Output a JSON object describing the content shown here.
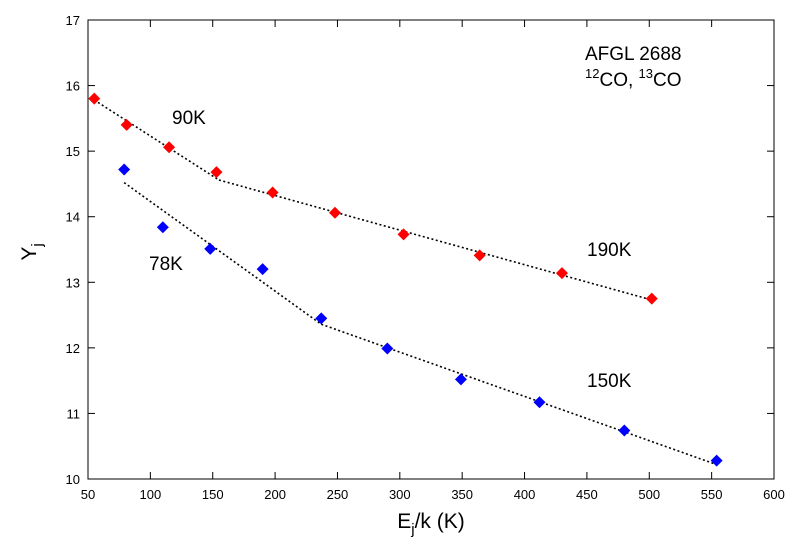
{
  "chart_data": {
    "type": "scatter",
    "title": "",
    "xlabel": "E_j/k (K)",
    "ylabel": "Y_j",
    "xlabel_parts": {
      "main": "E",
      "sub": "j",
      "rest": "/k (K)"
    },
    "ylabel_parts": {
      "main": "Y",
      "sub": "j"
    },
    "xlim": [
      50,
      600
    ],
    "ylim": [
      10,
      17
    ],
    "xticks": [
      50,
      100,
      150,
      200,
      250,
      300,
      350,
      400,
      450,
      500,
      550,
      600
    ],
    "yticks": [
      10,
      11,
      12,
      13,
      14,
      15,
      16,
      17
    ],
    "grid": false,
    "series": [
      {
        "name": "12CO",
        "color": "#ff0000",
        "marker": "diamond",
        "x": [
          55,
          81,
          115,
          153,
          198,
          248,
          303,
          364,
          430,
          502
        ],
        "y": [
          15.8,
          15.4,
          15.06,
          14.68,
          14.37,
          14.06,
          13.73,
          13.41,
          13.14,
          12.75
        ]
      },
      {
        "name": "13CO",
        "color": "#0000ff",
        "marker": "diamond",
        "x": [
          79,
          110,
          148,
          190,
          237,
          290,
          349,
          412,
          480,
          554
        ],
        "y": [
          14.72,
          13.84,
          13.51,
          13.2,
          12.45,
          11.99,
          11.52,
          11.17,
          10.74,
          10.28
        ]
      }
    ],
    "fit_lines": [
      {
        "name": "90K",
        "x": [
          55,
          155
        ],
        "y": [
          15.78,
          14.56
        ]
      },
      {
        "name": "190K",
        "x": [
          155,
          502
        ],
        "y": [
          14.56,
          12.73
        ]
      },
      {
        "name": "78K",
        "x": [
          79,
          237
        ],
        "y": [
          14.52,
          12.36
        ]
      },
      {
        "name": "150K",
        "x": [
          237,
          554
        ],
        "y": [
          12.36,
          10.22
        ]
      }
    ],
    "annotations": {
      "object_name": "AFGL 2688",
      "species": {
        "sup1": "12",
        "mol1": "CO, ",
        "sup2": "13",
        "mol2": "CO"
      },
      "temperatures": [
        "90K",
        "78K",
        "190K",
        "150K"
      ]
    }
  }
}
